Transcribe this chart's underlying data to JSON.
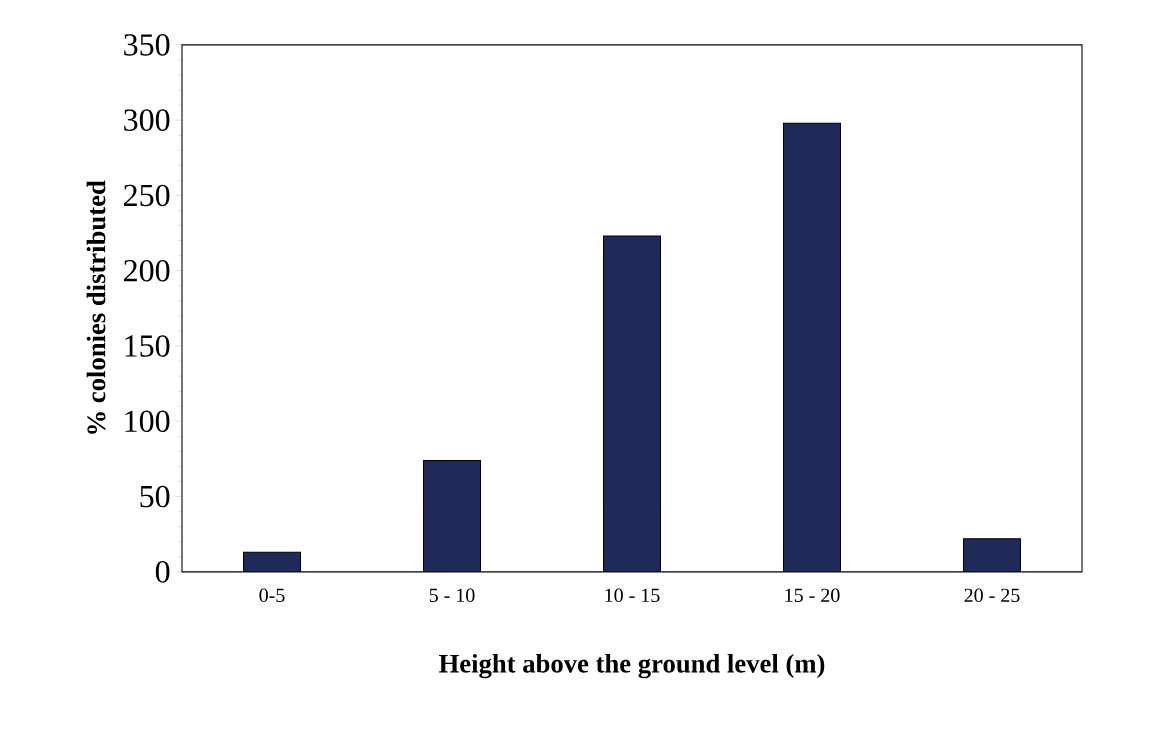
{
  "chart_data": {
    "type": "bar",
    "xlabel": "Height above the ground level (m)",
    "ylabel": "% colonies distributed",
    "categories": [
      "0-5",
      "5 - 10",
      "10 - 15",
      "15 - 20",
      "20 - 25"
    ],
    "values": [
      13,
      74,
      223,
      298,
      22
    ],
    "color": "#1f2a5a",
    "ylim": [
      0,
      350
    ],
    "yticks": [
      0,
      50,
      100,
      150,
      200,
      250,
      300,
      350
    ]
  }
}
